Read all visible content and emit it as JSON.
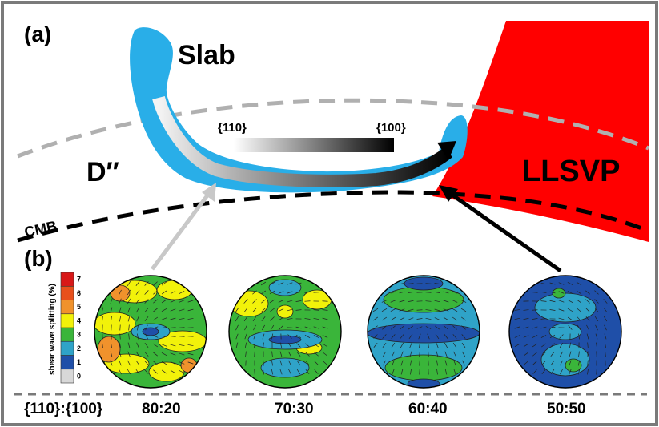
{
  "panel_a": {
    "label": "(a)",
    "slab_label": "Slab",
    "dpp_label": "D″",
    "llsvp_label": "LLSVP",
    "cmb_label": "CMB",
    "gradient_left": "{110}",
    "gradient_right": "{100}"
  },
  "panel_b": {
    "label": "(b)",
    "colorbar_title": "shear wave splitting (%)",
    "colorbar_ticks": [
      "7",
      "6",
      "5",
      "4",
      "3",
      "2",
      "1",
      "0"
    ],
    "ratio_label": "{110}:{100}",
    "nets": [
      {
        "ratio": "80:20"
      },
      {
        "ratio": "70:30"
      },
      {
        "ratio": "60:40"
      },
      {
        "ratio": "50:50"
      }
    ]
  },
  "colors": {
    "slab": "#29aee8",
    "llsvp": "#ff0000",
    "scale": [
      "#d8d8d8",
      "#1f4fa8",
      "#2fa3c8",
      "#3ab53a",
      "#f2f20a",
      "#f0922c",
      "#e8501c",
      "#d81818"
    ]
  }
}
